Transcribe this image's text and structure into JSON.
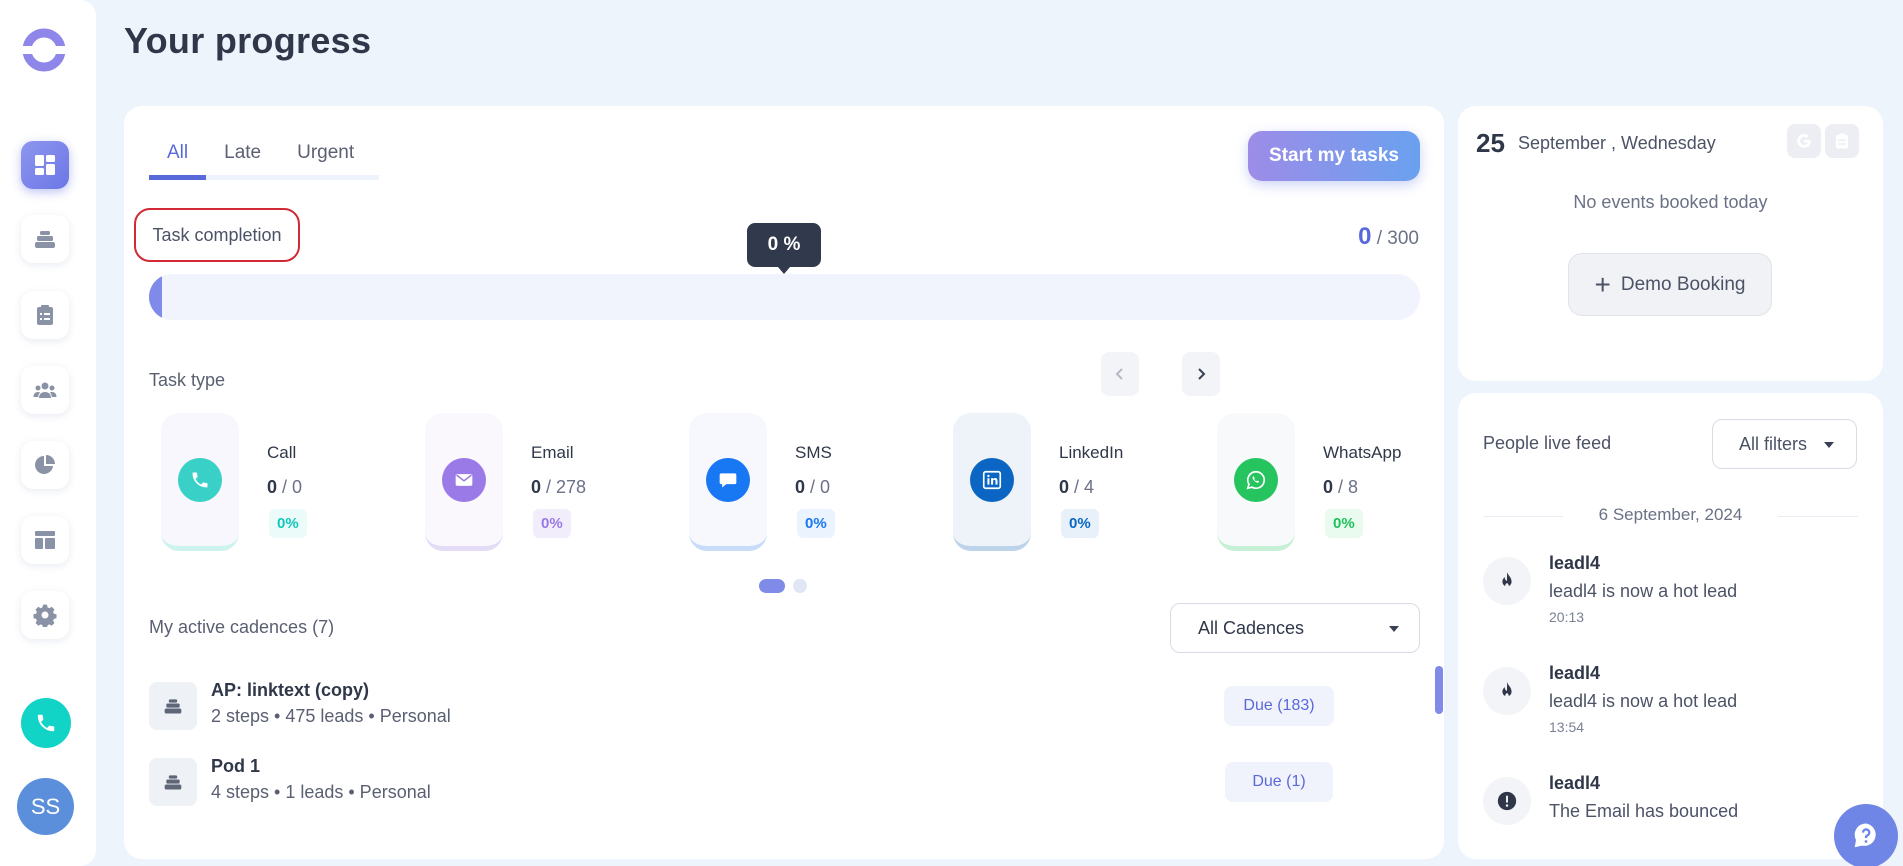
{
  "page": {
    "title": "Your progress"
  },
  "sidebar": {
    "avatar_initials": "SS",
    "items": [
      {
        "icon": "dashboard-icon",
        "active": true
      },
      {
        "icon": "cadences-icon",
        "active": false
      },
      {
        "icon": "tasks-clipboard-icon",
        "active": false
      },
      {
        "icon": "people-icon",
        "active": false
      },
      {
        "icon": "analytics-pie-icon",
        "active": false
      },
      {
        "icon": "templates-icon",
        "active": false
      },
      {
        "icon": "settings-gear-icon",
        "active": false
      }
    ]
  },
  "tabs": [
    {
      "label": "All",
      "active": true
    },
    {
      "label": "Late",
      "active": false
    },
    {
      "label": "Urgent",
      "active": false
    }
  ],
  "start_button": {
    "label": "Start my tasks"
  },
  "completion": {
    "label": "Task completion",
    "tooltip": "0 %",
    "done": "0",
    "total": "/ 300",
    "progress_fraction": 0.01
  },
  "task_type": {
    "label": "Task type",
    "items": [
      {
        "name": "Call",
        "done": "0",
        "total": " / 0",
        "pct": "0%",
        "icon": "phone-icon",
        "color": "#39d1c7",
        "bg": "#f7f7fd",
        "pct_color": "#11c8bb",
        "pct_bg": "#ebfbf9"
      },
      {
        "name": "Email",
        "done": "0",
        "total": " / 278",
        "pct": "0%",
        "icon": "mail-icon",
        "color": "#9a7ae6",
        "bg": "#faf8fd",
        "pct_color": "#9a7ae6",
        "pct_bg": "#f1edfb"
      },
      {
        "name": "SMS",
        "done": "0",
        "total": " / 0",
        "pct": "0%",
        "icon": "chat-bubble-icon",
        "color": "#1877f2",
        "bg": "#f7f8fd",
        "pct_color": "#1877f2",
        "pct_bg": "#ebf3fe"
      },
      {
        "name": "LinkedIn",
        "done": "0",
        "total": " / 4",
        "pct": "0%",
        "icon": "linkedin-icon",
        "color": "#0a66c2",
        "bg": "#eef3f9",
        "pct_color": "#0a66c2",
        "pct_bg": "#e8f1fa"
      },
      {
        "name": "WhatsApp",
        "done": "0",
        "total": " / 8",
        "pct": "0%",
        "icon": "whatsapp-icon",
        "color": "#25c45f",
        "bg": "#f7f9fb",
        "pct_color": "#1fc25a",
        "pct_bg": "#e9faef"
      }
    ]
  },
  "cadences": {
    "label": "My active cadences (7)",
    "filter": "All Cadences",
    "items": [
      {
        "name": "AP: linktext (copy)",
        "meta": "2 steps • 475 leads • Personal",
        "due": "Due (183)"
      },
      {
        "name": "Pod 1",
        "meta": "4 steps • 1 leads • Personal",
        "due": "Due (1)"
      }
    ]
  },
  "calendar": {
    "day": "25",
    "date": "September , Wednesday",
    "empty": "No events booked today",
    "demo_button": "Demo Booking"
  },
  "feed": {
    "title": "People live feed",
    "filter": "All filters",
    "date": "6 September, 2024",
    "items": [
      {
        "name": "leadl4",
        "text": "leadl4 is now a hot lead",
        "time": "20:13",
        "icon": "flame-icon"
      },
      {
        "name": "leadl4",
        "text": "leadl4 is now a hot lead",
        "time": "13:54",
        "icon": "flame-icon"
      },
      {
        "name": "leadl4",
        "text": "The Email has bounced",
        "time": "",
        "icon": "alert-icon"
      }
    ]
  }
}
